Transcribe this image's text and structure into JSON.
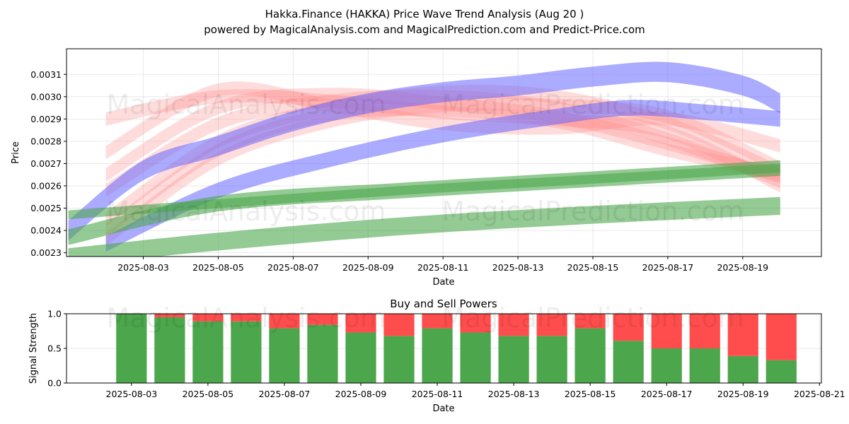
{
  "header": {
    "title": "Hakka.Finance (HAKKA) Price Wave Trend Analysis (Aug 20 )",
    "subtitle": "powered by MagicalAnalysis.com and MagicalPrediction.com and Predict-Price.com"
  },
  "watermarks": [
    "MagicalAnalysis.com",
    "MagicalPrediction.com"
  ],
  "colors": {
    "red": "#ff8080",
    "blue": "#6666ff",
    "green": "#4ca64c",
    "buy": "#4ca64c",
    "sell": "#ff4d4d"
  },
  "chart_data": [
    {
      "type": "area",
      "title": "",
      "xlabel": "Date",
      "ylabel": "Price",
      "x_ticks": [
        "2025-08-03",
        "2025-08-05",
        "2025-08-07",
        "2025-08-09",
        "2025-08-11",
        "2025-08-13",
        "2025-08-15",
        "2025-08-17",
        "2025-08-19"
      ],
      "y_ticks": [
        "0.0023",
        "0.0024",
        "0.0025",
        "0.0026",
        "0.0027",
        "0.0028",
        "0.0029",
        "0.0030",
        "0.0031"
      ],
      "xlim": [
        "2025-08-01",
        "2025-08-21"
      ],
      "ylim": [
        0.002283,
        0.003215
      ],
      "grid": true,
      "series": [
        {
          "color": "red",
          "x": [
            "2025-08-02",
            "2025-08-05",
            "2025-08-08",
            "2025-08-11",
            "2025-08-14",
            "2025-08-17",
            "2025-08-20"
          ],
          "values": [
            0.0029,
            0.003,
            0.00298,
            0.00293,
            0.00289,
            0.00276,
            0.00265
          ],
          "width": 6e-05
        },
        {
          "color": "red",
          "x": [
            "2025-08-02",
            "2025-08-05",
            "2025-08-08",
            "2025-08-11",
            "2025-08-14",
            "2025-08-17",
            "2025-08-20"
          ],
          "values": [
            0.00265,
            0.00295,
            0.00301,
            0.00297,
            0.00291,
            0.00279,
            0.00264
          ],
          "width": 6e-05
        },
        {
          "color": "red",
          "x": [
            "2025-08-02",
            "2025-08-05",
            "2025-08-08",
            "2025-08-11",
            "2025-08-14",
            "2025-08-17",
            "2025-08-20"
          ],
          "values": [
            0.00258,
            0.00288,
            0.00298,
            0.003,
            0.00295,
            0.00281,
            0.00262
          ],
          "width": 6e-05
        },
        {
          "color": "red",
          "x": [
            "2025-08-02",
            "2025-08-05",
            "2025-08-08",
            "2025-08-11",
            "2025-08-14",
            "2025-08-17",
            "2025-08-20"
          ],
          "values": [
            0.00245,
            0.0028,
            0.00295,
            0.00302,
            0.003,
            0.00288,
            0.00266
          ],
          "width": 6e-05
        },
        {
          "color": "red",
          "x": [
            "2025-08-02",
            "2025-08-05",
            "2025-08-08",
            "2025-08-11",
            "2025-08-14",
            "2025-08-17",
            "2025-08-20"
          ],
          "values": [
            0.00236,
            0.00272,
            0.00289,
            0.00296,
            0.00296,
            0.00291,
            0.00268
          ],
          "width": 6e-05
        },
        {
          "color": "red",
          "x": [
            "2025-08-02",
            "2025-08-05",
            "2025-08-08",
            "2025-08-11",
            "2025-08-14",
            "2025-08-17",
            "2025-08-20"
          ],
          "values": [
            0.0024,
            0.00276,
            0.00292,
            0.00294,
            0.0029,
            0.00284,
            0.0026
          ],
          "width": 6e-05
        },
        {
          "color": "red",
          "x": [
            "2025-08-02",
            "2025-08-05",
            "2025-08-08",
            "2025-08-11",
            "2025-08-14",
            "2025-08-17",
            "2025-08-20"
          ],
          "values": [
            0.00275,
            0.00303,
            0.00296,
            0.00288,
            0.00286,
            0.0029,
            0.00278
          ],
          "width": 6e-05
        },
        {
          "color": "blue",
          "x": [
            "2025-08-01",
            "2025-08-03",
            "2025-08-05",
            "2025-08-07",
            "2025-08-09",
            "2025-08-11",
            "2025-08-13",
            "2025-08-15",
            "2025-08-17",
            "2025-08-19",
            "2025-08-20"
          ],
          "values": [
            0.0024,
            0.00267,
            0.00278,
            0.00289,
            0.00297,
            0.00302,
            0.00305,
            0.00309,
            0.00311,
            0.00305,
            0.00297
          ],
          "width": 9e-05
        },
        {
          "color": "blue",
          "x": [
            "2025-08-02",
            "2025-08-05",
            "2025-08-08",
            "2025-08-11",
            "2025-08-14",
            "2025-08-16",
            "2025-08-18",
            "2025-08-20"
          ],
          "values": [
            0.00234,
            0.00258,
            0.00272,
            0.00283,
            0.00291,
            0.00295,
            0.00293,
            0.0029
          ],
          "width": 7e-05
        },
        {
          "color": "green",
          "x": [
            "2025-08-01",
            "2025-08-05",
            "2025-08-10",
            "2025-08-15",
            "2025-08-20"
          ],
          "values": [
            0.00237,
            0.00252,
            0.00258,
            0.00263,
            0.00268
          ],
          "width": 7e-05
        },
        {
          "color": "green",
          "x": [
            "2025-08-01",
            "2025-08-05",
            "2025-08-10",
            "2025-08-15",
            "2025-08-20"
          ],
          "values": [
            0.00228,
            0.00235,
            0.00242,
            0.00247,
            0.00251
          ],
          "width": 8e-05
        },
        {
          "color": "green",
          "x": [
            "2025-08-01",
            "2025-08-05",
            "2025-08-10",
            "2025-08-15",
            "2025-08-20"
          ],
          "values": [
            0.00247,
            0.00252,
            0.00258,
            0.00263,
            0.00268
          ],
          "width": 4e-05
        }
      ]
    },
    {
      "type": "bar",
      "title": "Buy and Sell Powers",
      "xlabel": "Date",
      "ylabel": "Signal Strength",
      "x_ticks": [
        "2025-08-03",
        "2025-08-05",
        "2025-08-07",
        "2025-08-09",
        "2025-08-11",
        "2025-08-13",
        "2025-08-15",
        "2025-08-17",
        "2025-08-19",
        "2025-08-21"
      ],
      "y_ticks": [
        "0.0",
        "0.5",
        "1.0"
      ],
      "ylim": [
        0,
        1
      ],
      "grid": true,
      "categories": [
        "2025-08-03",
        "2025-08-04",
        "2025-08-05",
        "2025-08-06",
        "2025-08-07",
        "2025-08-08",
        "2025-08-09",
        "2025-08-10",
        "2025-08-11",
        "2025-08-12",
        "2025-08-13",
        "2025-08-14",
        "2025-08-15",
        "2025-08-16",
        "2025-08-17",
        "2025-08-18",
        "2025-08-19",
        "2025-08-20"
      ],
      "series": [
        {
          "name": "Buy",
          "values": [
            1.0,
            0.95,
            0.89,
            0.89,
            0.79,
            0.84,
            0.73,
            0.68,
            0.79,
            0.73,
            0.68,
            0.68,
            0.79,
            0.61,
            0.5,
            0.5,
            0.39,
            0.33
          ]
        },
        {
          "name": "Sell",
          "values": [
            0.0,
            0.05,
            0.11,
            0.11,
            0.21,
            0.16,
            0.27,
            0.32,
            0.21,
            0.27,
            0.32,
            0.32,
            0.21,
            0.39,
            0.5,
            0.5,
            0.61,
            0.67
          ]
        }
      ]
    }
  ]
}
